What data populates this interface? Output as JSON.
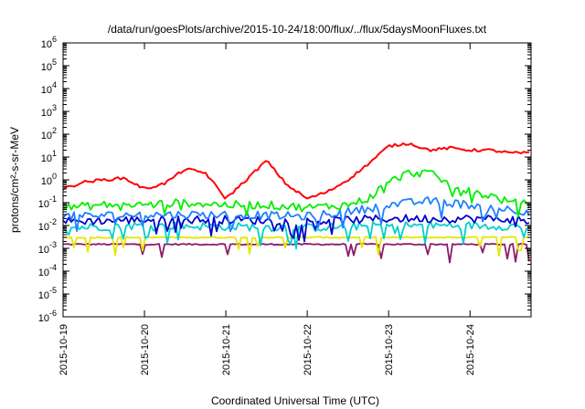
{
  "chart_data": {
    "type": "line",
    "title": "/data/run/goesPlots/archive/2015-10-24/18:00/flux/../flux/5daysMoonFluxes.txt",
    "xlabel": "Coordinated Universal Time (UTC)",
    "ylabel": "protons/cm²-s-sr-MeV",
    "y_scale": "log",
    "ylim_exponents": [
      -6,
      6
    ],
    "y_ticks": [
      {
        "base": "10",
        "exp": "6"
      },
      {
        "base": "10",
        "exp": "5"
      },
      {
        "base": "10",
        "exp": "4"
      },
      {
        "base": "10",
        "exp": "3"
      },
      {
        "base": "10",
        "exp": "2"
      },
      {
        "base": "10",
        "exp": "1"
      },
      {
        "base": "10",
        "exp": "0"
      },
      {
        "base": "10",
        "exp": "-1"
      },
      {
        "base": "10",
        "exp": "-2"
      },
      {
        "base": "10",
        "exp": "-3"
      },
      {
        "base": "10",
        "exp": "-4"
      },
      {
        "base": "10",
        "exp": "-5"
      },
      {
        "base": "10",
        "exp": "-6"
      }
    ],
    "x_ticks": [
      "2015-10-19",
      "2015-10-20",
      "2015-10-21",
      "2015-10-22",
      "2015-10-23",
      "2015-10-24"
    ],
    "xlim": [
      "2015-10-19",
      "2015-10-24 18:00"
    ],
    "grid": false,
    "series": [
      {
        "color": "#ff0000",
        "x": [
          "2015-10-19 00:00",
          "2015-10-19 06:00",
          "2015-10-19 12:00",
          "2015-10-19 18:00",
          "2015-10-20 00:00",
          "2015-10-20 06:00",
          "2015-10-20 12:00",
          "2015-10-20 18:00",
          "2015-10-21 00:00",
          "2015-10-21 06:00",
          "2015-10-21 12:00",
          "2015-10-21 18:00",
          "2015-10-22 00:00",
          "2015-10-22 06:00",
          "2015-10-22 12:00",
          "2015-10-22 18:00",
          "2015-10-23 00:00",
          "2015-10-23 06:00",
          "2015-10-23 12:00",
          "2015-10-23 18:00",
          "2015-10-24 00:00",
          "2015-10-24 06:00",
          "2015-10-24 12:00",
          "2015-10-24 18:00"
        ],
        "y": [
          0.4,
          0.8,
          1,
          1.2,
          0.4,
          0.7,
          3,
          2,
          0.15,
          1,
          7,
          0.6,
          0.15,
          0.3,
          1,
          5,
          30,
          40,
          20,
          25,
          20,
          20,
          15,
          15
        ]
      },
      {
        "color": "#00ee00",
        "x": [
          "2015-10-19 00:00",
          "2015-10-19 12:00",
          "2015-10-20 00:00",
          "2015-10-20 12:00",
          "2015-10-21 00:00",
          "2015-10-21 12:00",
          "2015-10-22 00:00",
          "2015-10-22 12:00",
          "2015-10-22 18:00",
          "2015-10-23 00:00",
          "2015-10-23 06:00",
          "2015-10-23 12:00",
          "2015-10-23 18:00",
          "2015-10-24 00:00",
          "2015-10-24 06:00",
          "2015-10-24 12:00",
          "2015-10-24 18:00"
        ],
        "y": [
          0.06,
          0.08,
          0.08,
          0.1,
          0.08,
          0.08,
          0.06,
          0.08,
          0.15,
          0.8,
          2,
          2,
          0.6,
          0.3,
          0.2,
          0.1,
          0.08
        ]
      },
      {
        "color": "#1e7fff",
        "x": [
          "2015-10-19 00:00",
          "2015-10-20 00:00",
          "2015-10-21 00:00",
          "2015-10-22 00:00",
          "2015-10-22 12:00",
          "2015-10-23 00:00",
          "2015-10-23 12:00",
          "2015-10-24 00:00",
          "2015-10-24 12:00",
          "2015-10-24 18:00"
        ],
        "y": [
          0.025,
          0.03,
          0.03,
          0.025,
          0.04,
          0.08,
          0.12,
          0.08,
          0.05,
          0.04
        ]
      },
      {
        "color": "#0000cd",
        "x": [
          "2015-10-19 00:00",
          "2015-10-20 00:00",
          "2015-10-21 00:00",
          "2015-10-22 00:00",
          "2015-10-23 00:00",
          "2015-10-24 00:00",
          "2015-10-24 18:00"
        ],
        "y": [
          0.015,
          0.018,
          0.018,
          0.015,
          0.02,
          0.02,
          0.018
        ]
      },
      {
        "color": "#00ced1",
        "x": [
          "2015-10-19 00:00",
          "2015-10-20 00:00",
          "2015-10-21 00:00",
          "2015-10-22 00:00",
          "2015-10-23 00:00",
          "2015-10-24 00:00",
          "2015-10-24 18:00"
        ],
        "y": [
          0.008,
          0.01,
          0.009,
          0.008,
          0.01,
          0.01,
          0.009
        ]
      },
      {
        "color": "#e6e600",
        "x": [
          "2015-10-19 00:00",
          "2015-10-20 00:00",
          "2015-10-21 00:00",
          "2015-10-22 00:00",
          "2015-10-23 00:00",
          "2015-10-24 00:00",
          "2015-10-24 18:00"
        ],
        "y": [
          0.003,
          0.003,
          0.003,
          0.003,
          0.003,
          0.003,
          0.003
        ]
      },
      {
        "color": "#8b1a6b",
        "x": [
          "2015-10-19 00:00",
          "2015-10-19 12:00",
          "2015-10-20 00:00",
          "2015-10-20 12:00",
          "2015-10-21 00:00",
          "2015-10-21 12:00",
          "2015-10-22 00:00",
          "2015-10-22 12:00",
          "2015-10-23 00:00",
          "2015-10-23 12:00",
          "2015-10-24 00:00",
          "2015-10-24 12:00",
          "2015-10-24 18:00"
        ],
        "y": [
          0.0015,
          0.0015,
          0.0015,
          0.0015,
          0.0015,
          0.0015,
          0.0015,
          0.0015,
          0.0015,
          0.0015,
          0.0015,
          0.0015,
          0.0015
        ]
      }
    ]
  }
}
